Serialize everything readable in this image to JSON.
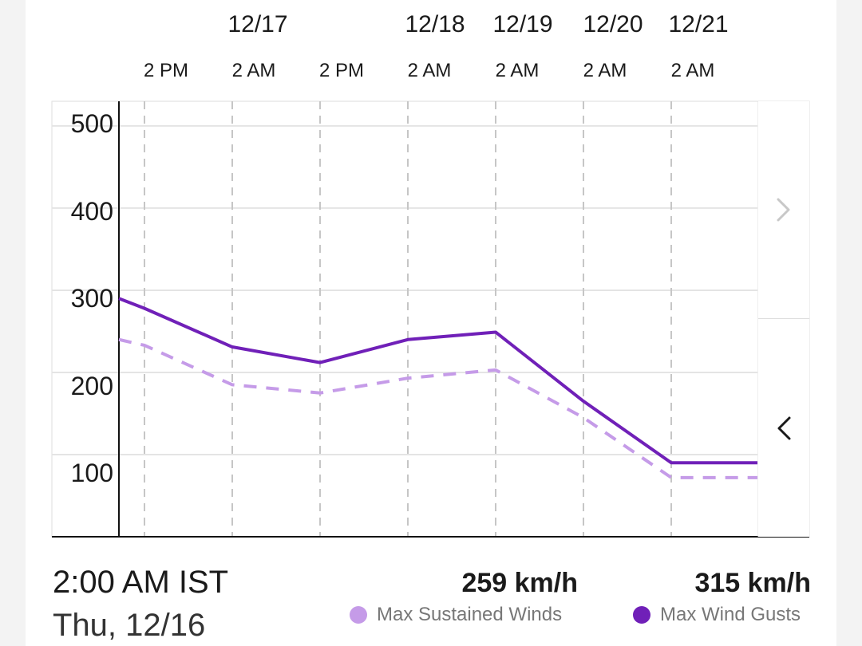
{
  "chart_data": {
    "type": "line",
    "x_dates": [
      "",
      "12/17",
      "",
      "12/18",
      "12/19",
      "12/20",
      "12/21"
    ],
    "x_times": [
      "2 PM",
      "2 AM",
      "2 PM",
      "2 AM",
      "2 AM",
      "2 AM",
      "2 AM"
    ],
    "y_ticks": [
      "500",
      "400",
      "300",
      "200",
      "100"
    ],
    "ylim": [
      0,
      530
    ],
    "x_hours": [
      0,
      12,
      24,
      36,
      48,
      72,
      96,
      120,
      144
    ],
    "series": [
      {
        "name": "Max Sustained Winds",
        "style": "dashed",
        "color": "#c59be8",
        "values": [
          240,
          233,
          185,
          175,
          193,
          203,
          145,
          72,
          72
        ]
      },
      {
        "name": "Max Wind Gusts",
        "style": "solid",
        "color": "#7020b8",
        "values": [
          290,
          278,
          231,
          212,
          240,
          249,
          165,
          90,
          90
        ]
      }
    ],
    "grid": true
  },
  "readout": {
    "time": "2:00 AM IST",
    "date": "Thu, 12/16",
    "sustained_value": "259 km/h",
    "gusts_value": "315 km/h"
  },
  "legend": {
    "sustained_label": "Max Sustained Winds",
    "gusts_label": "Max Wind Gusts"
  },
  "nav": {
    "next_icon": "chevron-right-icon",
    "prev_icon": "chevron-left-icon"
  }
}
